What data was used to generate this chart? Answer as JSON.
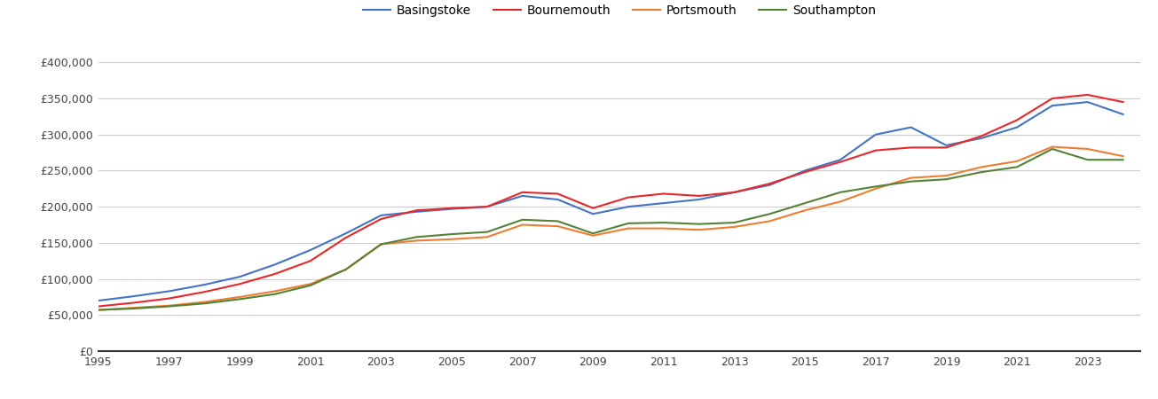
{
  "title": "",
  "years": [
    1995,
    1996,
    1997,
    1998,
    1999,
    2000,
    2001,
    2002,
    2003,
    2004,
    2005,
    2006,
    2007,
    2008,
    2009,
    2010,
    2011,
    2012,
    2013,
    2014,
    2015,
    2016,
    2017,
    2018,
    2019,
    2020,
    2021,
    2022,
    2023,
    2024
  ],
  "basingstoke": [
    70000,
    76000,
    83000,
    92000,
    103000,
    120000,
    140000,
    163000,
    188000,
    193000,
    197000,
    200000,
    215000,
    210000,
    190000,
    200000,
    205000,
    210000,
    220000,
    230000,
    250000,
    265000,
    300000,
    310000,
    285000,
    295000,
    310000,
    340000,
    345000,
    328000
  ],
  "bournemouth": [
    62000,
    67000,
    73000,
    82000,
    93000,
    107000,
    125000,
    157000,
    183000,
    195000,
    198000,
    200000,
    220000,
    218000,
    198000,
    213000,
    218000,
    215000,
    220000,
    232000,
    248000,
    262000,
    278000,
    282000,
    282000,
    298000,
    320000,
    350000,
    355000,
    345000
  ],
  "portsmouth": [
    57000,
    60000,
    63000,
    68000,
    75000,
    83000,
    93000,
    113000,
    148000,
    153000,
    155000,
    158000,
    175000,
    173000,
    160000,
    170000,
    170000,
    168000,
    172000,
    180000,
    195000,
    207000,
    225000,
    240000,
    243000,
    255000,
    263000,
    283000,
    280000,
    270000
  ],
  "southampton": [
    57000,
    59000,
    62000,
    66000,
    72000,
    79000,
    91000,
    113000,
    148000,
    158000,
    162000,
    165000,
    182000,
    180000,
    163000,
    177000,
    178000,
    176000,
    178000,
    190000,
    205000,
    220000,
    228000,
    235000,
    238000,
    248000,
    255000,
    280000,
    265000,
    265000
  ],
  "colors": {
    "basingstoke": "#4472c4",
    "bournemouth": "#e8272a",
    "portsmouth": "#ed7d31",
    "southampton": "#548235"
  },
  "ylim": [
    0,
    420000
  ],
  "yticks": [
    0,
    50000,
    100000,
    150000,
    200000,
    250000,
    300000,
    350000,
    400000
  ],
  "xticks": [
    1995,
    1997,
    1999,
    2001,
    2003,
    2005,
    2007,
    2009,
    2011,
    2013,
    2015,
    2017,
    2019,
    2021,
    2023
  ],
  "xlim_left": 1995,
  "xlim_right": 2024.5,
  "background_color": "#ffffff",
  "grid_color": "#cccccc",
  "legend_labels": [
    "Basingstoke",
    "Bournemouth",
    "Portsmouth",
    "Southampton"
  ]
}
